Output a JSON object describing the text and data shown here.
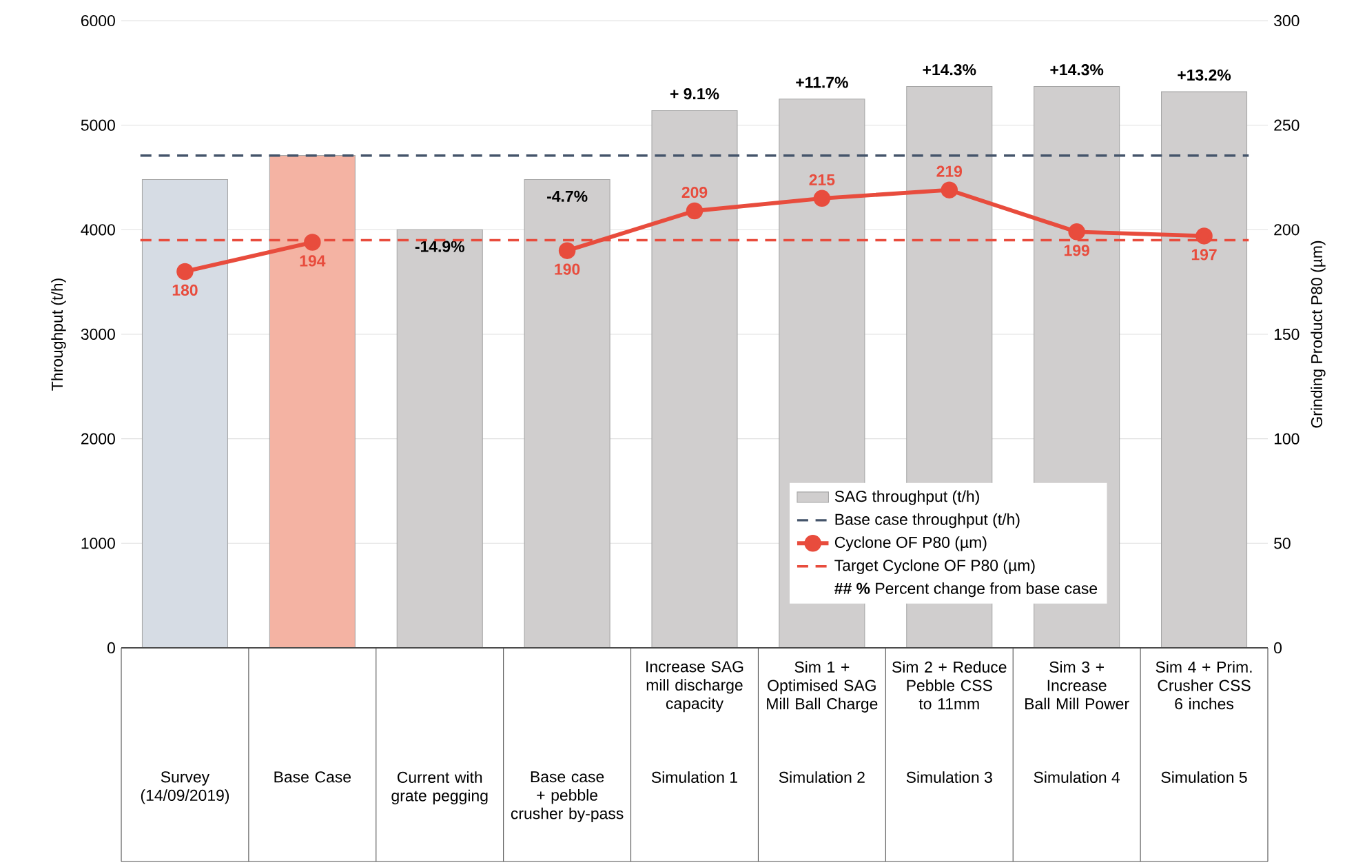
{
  "chart_data": {
    "type": "bar",
    "ylabel": "Throughput (t/h)",
    "y2label": "Grinding Product P80 (µm)",
    "categories": [
      "Survey (14/09/2019)",
      "Base Case",
      "Current with grate pegging",
      "Base case + pebble crusher by-pass",
      "Increase SAG mill discharge capacity",
      "Sim 1 + Optimised SAG Mill Ball Charge",
      "Sim 2 + Reduce Pebble CSS to 11mm",
      "Sim 3 + Increase Ball Mill Power",
      "Sim 4 + Prim. Crusher CSS 6 inches"
    ],
    "series": [
      {
        "name": "SAG throughput (t/h)",
        "color": "#d0cece",
        "colors": [
          "#d6dce4",
          "#f4b3a3",
          "#d0cece",
          "#d0cece",
          "#d0cece",
          "#d0cece",
          "#d0cece",
          "#d0cece",
          "#d0cece"
        ],
        "values": [
          4480,
          4710,
          4000,
          4480,
          5140,
          5250,
          5370,
          5370,
          5320
        ]
      },
      {
        "name": "Cyclone OF P80 (µm)",
        "type": "line",
        "axis": "y2",
        "color": "#e84c3d",
        "values": [
          180,
          194,
          null,
          190,
          209,
          215,
          219,
          199,
          197
        ],
        "value_labels": [
          "180",
          "194",
          null,
          "190",
          "209",
          "215",
          "219",
          "199",
          "197"
        ]
      }
    ],
    "ref_lines": [
      {
        "axis": "y",
        "value": 4710,
        "label": "Base case throughput (t/h)",
        "color": "#44546a",
        "line_style": "dashed"
      },
      {
        "axis": "y2",
        "value": 195,
        "label": "Target Cyclone OF P80 (µm)",
        "color": "#e84c3d",
        "line_style": "dashed"
      }
    ],
    "annotations": [
      "**## %** Percent change from base case",
      "Simulation 1",
      "Simulation 2",
      "Simulation 3",
      "Simulation 4",
      "Simulation 5",
      {
        "text": "-14.9%",
        "x": "Current with grate pegging",
        "y": 4000
      },
      {
        "text": "-4.7%",
        "x": "Base case + pebble crusher by-pass",
        "y": 4480
      },
      {
        "text": "+ 9.1%",
        "x": "Increase SAG mill discharge capacity",
        "y": 5140
      },
      {
        "text": "+11.7%",
        "x": "Sim 1 + Optimised SAG Mill Ball Charge",
        "y": 5250
      },
      {
        "text": "+14.3%",
        "x": "Sim 2 + Reduce Pebble CSS to 11mm",
        "y": 5370
      },
      {
        "text": "+14.3%",
        "x": "Sim 3 + Increase Ball Mill Power",
        "y": 5370
      },
      {
        "text": "+13.2%",
        "x": "Sim 4 + Prim. Crusher CSS 6 inches",
        "y": 5320
      }
    ],
    "ylim": [
      0,
      6000
    ],
    "yticks": [
      0,
      1000,
      2000,
      3000,
      4000,
      5000,
      6000
    ],
    "y2lim": [
      0,
      300
    ],
    "y2ticks": [
      0,
      50,
      100,
      150,
      200,
      250,
      300
    ],
    "grid": "y",
    "legend": "bottom right",
    "marker": "circle"
  }
}
